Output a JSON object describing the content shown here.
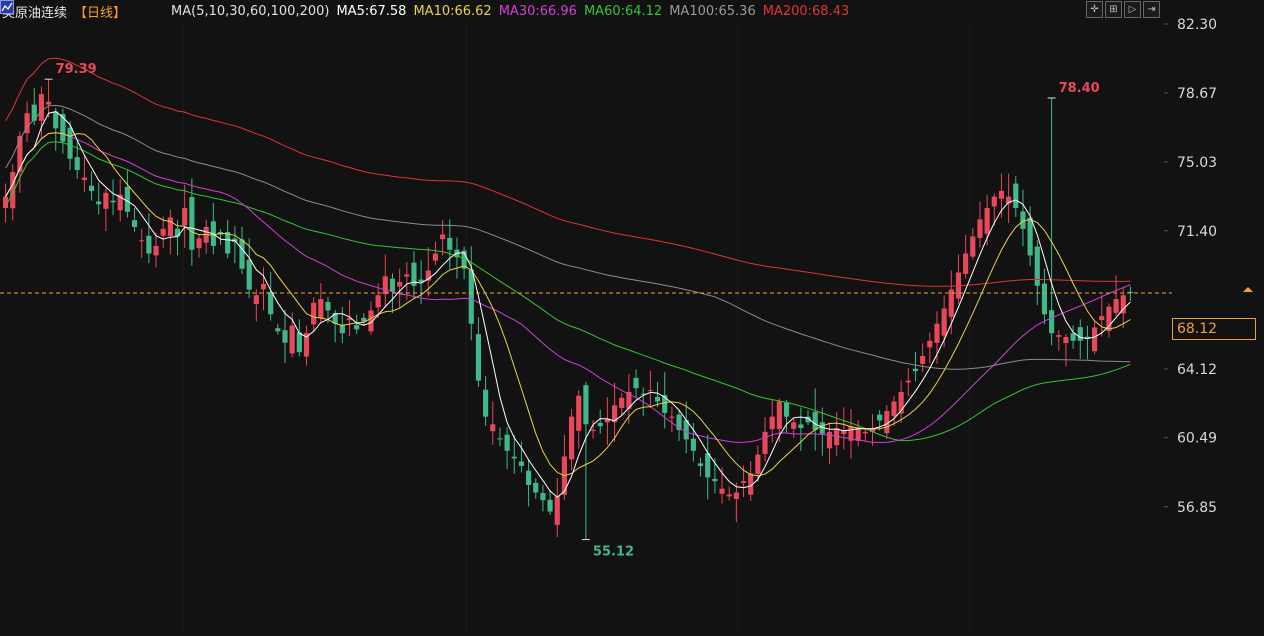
{
  "header": {
    "title": "美原油连续",
    "period": "【日线】",
    "ma_params": "MA(5,10,30,60,100,200)",
    "ma5": "MA5:67.58",
    "ma10": "MA10:66.62",
    "ma30": "MA30:66.96",
    "ma60": "MA60:64.12",
    "ma100": "MA100:65.36",
    "ma200": "MA200:68.43"
  },
  "toolbar": {
    "icons": [
      "crosshair-icon",
      "zoom-in-icon",
      "play-icon",
      "fast-forward-icon"
    ]
  },
  "colors": {
    "background": "#121212",
    "up": "#e8485a",
    "down": "#3fb98a",
    "ma5": "#ffffff",
    "ma10": "#e8d53c",
    "ma30": "#d23fd8",
    "ma60": "#33c633",
    "ma100": "#8c8c8c",
    "ma200": "#e03434",
    "last_price": "#f0a030"
  },
  "last_price": "68.12",
  "chart_data": {
    "type": "candlestick",
    "y_ticks": [
      "82.30",
      "78.67",
      "75.03",
      "71.40",
      "64.12",
      "60.49",
      "56.85"
    ],
    "ylim": [
      53.2,
      82.3
    ],
    "annotations": [
      {
        "label": "79.39",
        "value": 79.39,
        "bar": 6,
        "kind": "high"
      },
      {
        "label": "55.12",
        "value": 55.12,
        "bar": 81,
        "kind": "low"
      },
      {
        "label": "78.40",
        "value": 78.4,
        "bar": 146,
        "kind": "high"
      }
    ],
    "ma_latest": {
      "MA5": 67.58,
      "MA10": 66.62,
      "MA30": 66.96,
      "MA60": 64.12,
      "MA100": 65.36,
      "MA200": 68.43
    },
    "closes": [
      73.2,
      74.5,
      76.4,
      77.6,
      77.2,
      78.6,
      78.2,
      76.8,
      76.1,
      75.2,
      74.6,
      74.2,
      73.5,
      72.8,
      73.4,
      72.9,
      73.3,
      72.4,
      71.6,
      70.9,
      70.2,
      70.6,
      71.5,
      72.1,
      71.1,
      72.6,
      70.4,
      71.0,
      71.6,
      70.6,
      71.2,
      70.2,
      70.8,
      69.4,
      68.3,
      68.0,
      68.6,
      67.0,
      66.1,
      65.5,
      66.4,
      65.0,
      66.0,
      67.6,
      67.8,
      67.2,
      66.5,
      66.0,
      66.8,
      66.2,
      66.6,
      67.2,
      68.0,
      69.0,
      68.2,
      68.7,
      69.1,
      68.5,
      68.7,
      69.3,
      70.2,
      71.2,
      70.4,
      70.0,
      69.4,
      66.5,
      63.5,
      61.6,
      61.2,
      60.4,
      59.8,
      59.4,
      59.0,
      58.0,
      57.6,
      57.2,
      56.6,
      57.4,
      59.5,
      61.6,
      62.7,
      61.2,
      60.9,
      61.1,
      61.5,
      62.2,
      62.6,
      62.9,
      63.1,
      62.8,
      63.0,
      62.4,
      61.8,
      61.6,
      60.9,
      60.4,
      59.8,
      59.0,
      58.4,
      58.2,
      57.8,
      57.5,
      57.6,
      58.2,
      58.6,
      59.6,
      60.8,
      61.6,
      62.4,
      61.6,
      61.3,
      61.0,
      61.3,
      60.9,
      60.7,
      60.8,
      61.0,
      60.9,
      61.1,
      61.0,
      60.8,
      61.0,
      61.4,
      61.9,
      62.4,
      62.9,
      63.5,
      64.0,
      64.8,
      65.6,
      66.5,
      67.3,
      68.3,
      69.2,
      70.2,
      71.1,
      72.0,
      72.6,
      73.2,
      73.5,
      73.2,
      72.6,
      71.5,
      70.1,
      68.5,
      67.0,
      66.0,
      65.9,
      65.8,
      65.6,
      65.6,
      65.7,
      66.3,
      66.9,
      67.4,
      67.8,
      68.0,
      68.12
    ]
  }
}
